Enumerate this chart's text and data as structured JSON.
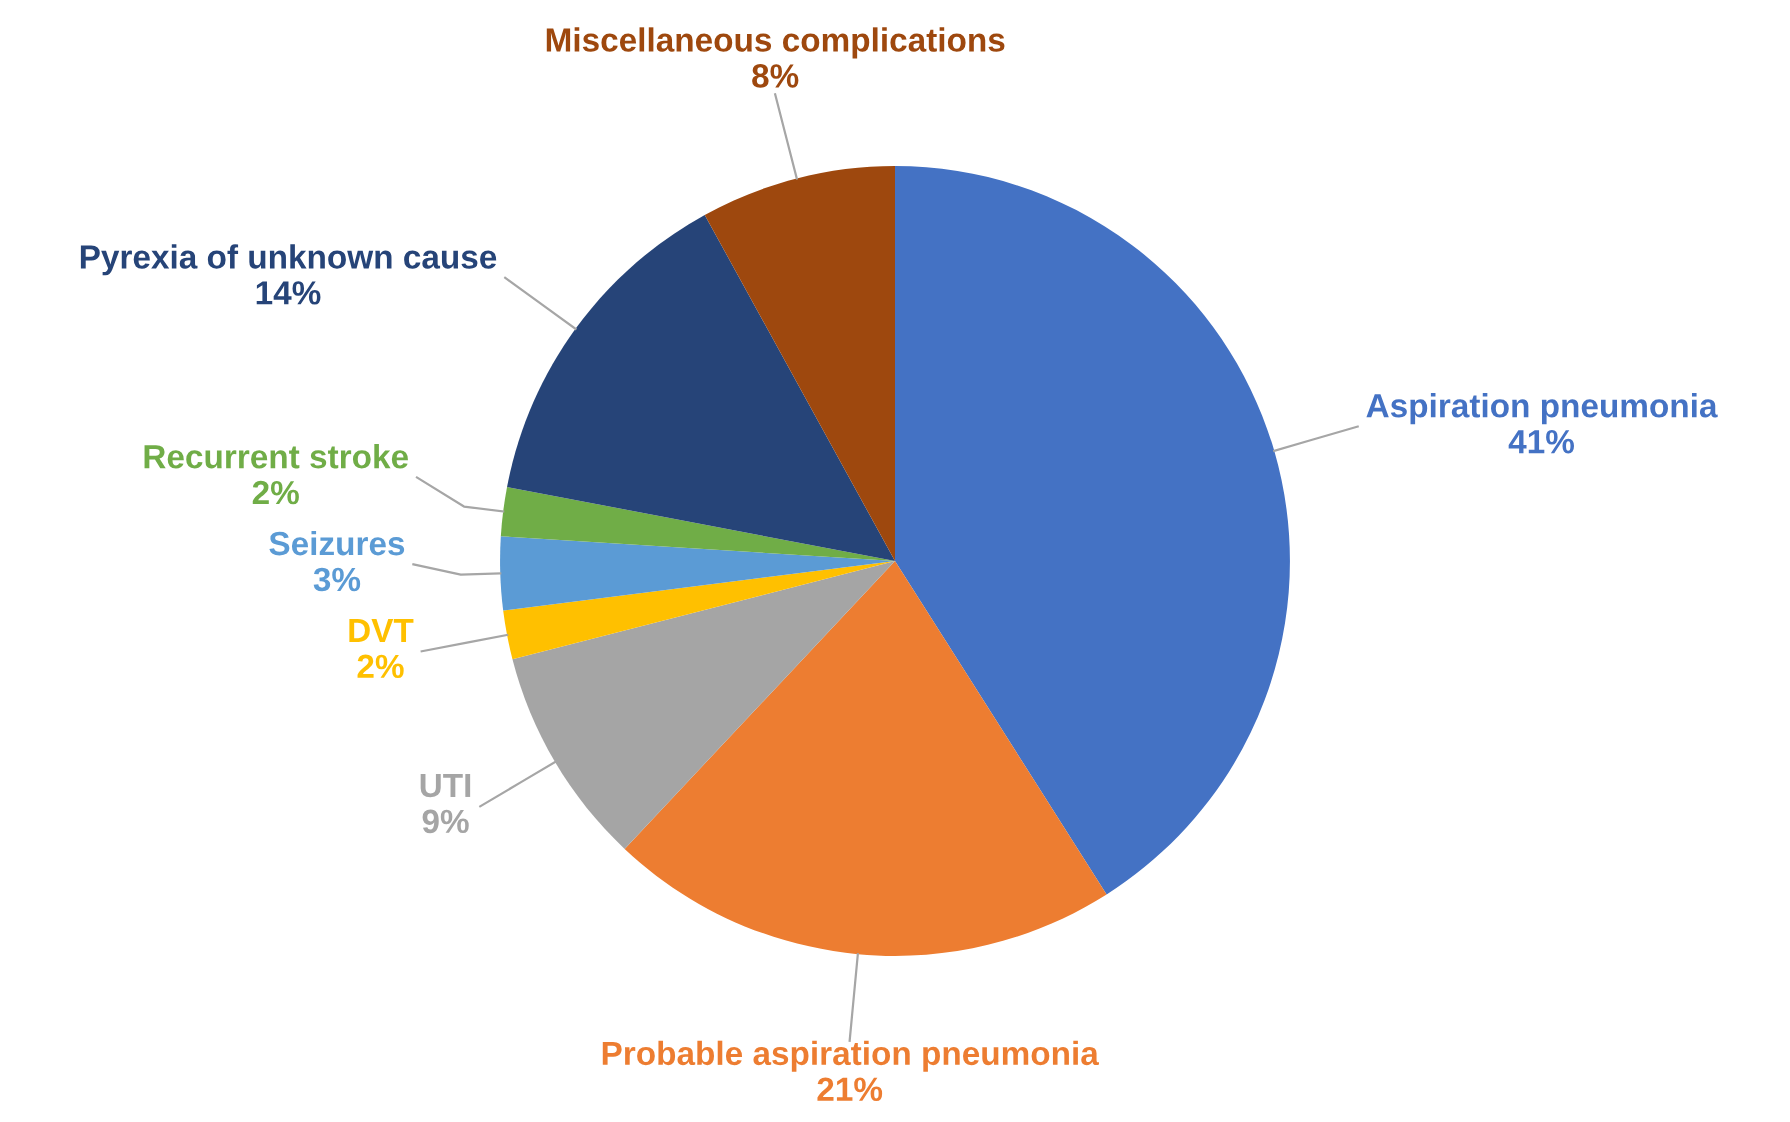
{
  "chart_data": {
    "type": "pie",
    "categories": [
      "Aspiration pneumonia",
      "Probable aspiration pneumonia",
      "UTI",
      "DVT",
      "Seizures",
      "Recurrent stroke",
      "Pyrexia of unknown cause",
      "Miscellaneous complications"
    ],
    "values": [
      41,
      21,
      9,
      2,
      3,
      2,
      14,
      8
    ],
    "colors": [
      "#4472c4",
      "#ed7d31",
      "#a5a5a5",
      "#ffc000",
      "#5b9bd5",
      "#70ad47",
      "#264478",
      "#9e480e"
    ],
    "value_labels": [
      "41%",
      "21%",
      "9%",
      "2%",
      "3%",
      "2%",
      "14%",
      "8%"
    ]
  }
}
